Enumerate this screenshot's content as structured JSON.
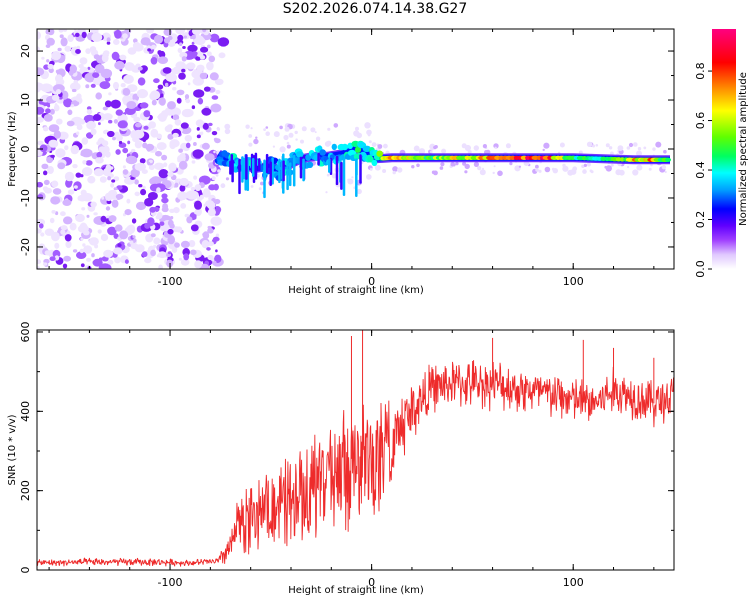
{
  "title": "S202.2026.074.14.38.G27",
  "chart_data": [
    {
      "type": "heatmap",
      "name": "spectrogram",
      "xlabel": "Height of straight line (km)",
      "ylabel": "Frequency (Hz)",
      "xlim": [
        -166,
        150
      ],
      "ylim": [
        -24.5,
        24.5
      ],
      "xticks": [
        -100,
        0,
        100
      ],
      "yticks": [
        -20,
        -10,
        0,
        10,
        20
      ],
      "colorbar": {
        "label": "Normalized spectral amplitude",
        "range": [
          0,
          0.97
        ],
        "ticks": [
          "0.0",
          "0.2",
          "0.4",
          "0.6",
          "0.8"
        ],
        "tick_values": [
          0,
          0.2,
          0.4,
          0.6,
          0.8
        ],
        "colors": [
          "#ffffff",
          "#e0c8ff",
          "#a040ff",
          "#6000ff",
          "#0000ff",
          "#00a0ff",
          "#00ffff",
          "#00ff60",
          "#60ff00",
          "#ffff00",
          "#ff9000",
          "#ff0000",
          "#ff0080"
        ]
      },
      "noise_region": {
        "x_range": [
          -166,
          -76
        ],
        "amplitude_range": [
          0.0,
          0.12
        ]
      },
      "signal_track": [
        {
          "x": -76,
          "y": -1.0,
          "amp": 0.3
        },
        {
          "x": -70,
          "y": -2.5,
          "amp": 0.4
        },
        {
          "x": -65,
          "y": -3.0,
          "amp": 0.35
        },
        {
          "x": -58,
          "y": -4.0,
          "amp": 0.4
        },
        {
          "x": -50,
          "y": -3.5,
          "amp": 0.3
        },
        {
          "x": -45,
          "y": -4.5,
          "amp": 0.35
        },
        {
          "x": -40,
          "y": -3.0,
          "amp": 0.4
        },
        {
          "x": -35,
          "y": -2.0,
          "amp": 0.38
        },
        {
          "x": -28,
          "y": -1.5,
          "amp": 0.4
        },
        {
          "x": -22,
          "y": -1.5,
          "amp": 0.35
        },
        {
          "x": -15,
          "y": -1.0,
          "amp": 0.4
        },
        {
          "x": -8,
          "y": 0.0,
          "amp": 0.45
        },
        {
          "x": -3,
          "y": -0.5,
          "amp": 0.4
        },
        {
          "x": 2,
          "y": -2.0,
          "amp": 0.45
        },
        {
          "x": 10,
          "y": -1.8,
          "amp": 0.85
        },
        {
          "x": 20,
          "y": -1.8,
          "amp": 0.6
        },
        {
          "x": 30,
          "y": -1.8,
          "amp": 0.55
        },
        {
          "x": 40,
          "y": -1.8,
          "amp": 0.65
        },
        {
          "x": 55,
          "y": -1.8,
          "amp": 0.7
        },
        {
          "x": 70,
          "y": -1.8,
          "amp": 0.9
        },
        {
          "x": 85,
          "y": -1.8,
          "amp": 0.9
        },
        {
          "x": 100,
          "y": -1.8,
          "amp": 0.5
        },
        {
          "x": 115,
          "y": -2.0,
          "amp": 0.45
        },
        {
          "x": 130,
          "y": -2.2,
          "amp": 0.7
        },
        {
          "x": 140,
          "y": -2.2,
          "amp": 0.75
        },
        {
          "x": 148,
          "y": -2.2,
          "amp": 0.4
        }
      ]
    },
    {
      "type": "line",
      "name": "snr",
      "xlabel": "Height of straight line (km)",
      "ylabel": "SNR (10 * v/v)",
      "xlim": [
        -166,
        150
      ],
      "ylim": [
        0,
        605
      ],
      "xticks": [
        -100,
        0,
        100
      ],
      "yticks": [
        0,
        200,
        400,
        600
      ],
      "color": "#ee2b2b",
      "series": [
        {
          "name": "SNR",
          "x": [
            -166,
            -140,
            -110,
            -90,
            -76,
            -70,
            -66,
            -60,
            -50,
            -40,
            -30,
            -20,
            -10,
            0,
            10,
            20,
            30,
            40,
            60,
            80,
            100,
            110,
            120,
            130,
            140,
            150
          ],
          "mean": [
            18,
            20,
            20,
            18,
            22,
            60,
            130,
            140,
            180,
            200,
            230,
            250,
            280,
            300,
            330,
            400,
            460,
            470,
            470,
            450,
            430,
            420,
            450,
            440,
            420,
            440
          ],
          "spread": [
            8,
            10,
            10,
            8,
            10,
            50,
            70,
            80,
            90,
            100,
            110,
            120,
            130,
            130,
            110,
            80,
            60,
            60,
            60,
            60,
            60,
            55,
            60,
            60,
            60,
            60
          ],
          "spikes": [
            {
              "x": -4.5,
              "y": 605
            },
            {
              "x": -10,
              "y": 590
            },
            {
              "x": 60,
              "y": 585
            },
            {
              "x": 105,
              "y": 580
            },
            {
              "x": 120,
              "y": 560
            },
            {
              "x": 140,
              "y": 535
            }
          ]
        }
      ]
    }
  ]
}
